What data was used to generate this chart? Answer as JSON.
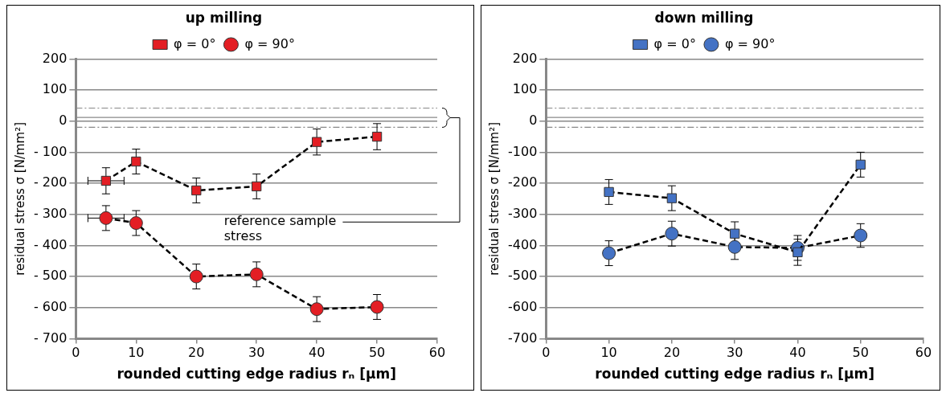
{
  "chart_data": [
    {
      "type": "line",
      "title": "up milling",
      "xlabel": "rounded cutting edge radius rₙ [µm]",
      "ylabel": "residual stress σ [N/mm²]",
      "xlim": [
        0,
        60
      ],
      "xticks": [
        0,
        10,
        20,
        30,
        40,
        50,
        60
      ],
      "ylim": [
        -700,
        200
      ],
      "yticks": [
        200,
        100,
        0,
        {
          "value": -100,
          "label": "- 100"
        },
        {
          "value": -200,
          "label": "- 200"
        },
        {
          "value": -300,
          "label": "- 300"
        },
        {
          "value": -400,
          "label": "- 400"
        },
        {
          "value": -500,
          "label": "- 500"
        },
        {
          "value": -600,
          "label": "- 600"
        },
        {
          "value": -700,
          "label": "- 700"
        }
      ],
      "grid": "y",
      "legend": "top",
      "line_style": "dashed",
      "series": [
        {
          "name": "φ = 0°",
          "color": "#e31e24",
          "marker": "square",
          "x": [
            5,
            10,
            20,
            30,
            40,
            50
          ],
          "values": [
            -192,
            -130,
            -223,
            -210,
            -67,
            -50
          ],
          "errors": [
            42,
            40,
            40,
            40,
            42,
            42
          ],
          "xerrors": [
            3,
            null,
            null,
            null,
            null,
            null
          ]
        },
        {
          "name": "φ = 90°",
          "color": "#e31e24",
          "marker": "circle",
          "x": [
            5,
            10,
            20,
            30,
            40,
            50
          ],
          "values": [
            -312,
            -328,
            -500,
            -493,
            -605,
            -598
          ],
          "errors": [
            40,
            40,
            40,
            40,
            40,
            40
          ],
          "xerrors": [
            3,
            null,
            null,
            null,
            null,
            null
          ]
        }
      ],
      "ref_lines": [
        {
          "axis": "y",
          "value": 42,
          "line_style": "dashed",
          "color": "#888888"
        },
        {
          "axis": "y",
          "value": 12,
          "line_style": "solid",
          "color": "#888888"
        },
        {
          "axis": "y",
          "value": -20,
          "line_style": "dashed",
          "color": "#888888"
        }
      ],
      "annotations": [
        "reference sample stress"
      ]
    },
    {
      "type": "line",
      "title": "down milling",
      "xlabel": "rounded cutting edge radius rₙ [µm]",
      "ylabel": "residual stress σ [N/mm²]",
      "xlim": [
        0,
        60
      ],
      "xticks": [
        0,
        10,
        20,
        30,
        40,
        50,
        60
      ],
      "ylim": [
        -700,
        200
      ],
      "yticks": [
        200,
        100,
        0,
        -100,
        -200,
        -300,
        -400,
        -500,
        -600,
        -700
      ],
      "grid": "y",
      "legend": "top",
      "line_style": "dashed",
      "series": [
        {
          "name": "φ = 0°",
          "color": "#4472c4",
          "marker": "square",
          "x": [
            10,
            20,
            30,
            40,
            50
          ],
          "values": [
            -228,
            -248,
            -362,
            -422,
            -140
          ],
          "errors": [
            40,
            40,
            38,
            42,
            40
          ]
        },
        {
          "name": "φ = 90°",
          "color": "#4472c4",
          "marker": "circle",
          "x": [
            10,
            20,
            30,
            40,
            50
          ],
          "values": [
            -425,
            -362,
            -405,
            -408,
            -368
          ],
          "errors": [
            40,
            40,
            40,
            40,
            38
          ]
        }
      ],
      "ref_lines": [
        {
          "axis": "y",
          "value": 42,
          "line_style": "dashed",
          "color": "#888888"
        },
        {
          "axis": "y",
          "value": 12,
          "line_style": "solid",
          "color": "#888888"
        },
        {
          "axis": "y",
          "value": -20,
          "line_style": "dashed",
          "color": "#888888"
        }
      ]
    }
  ]
}
